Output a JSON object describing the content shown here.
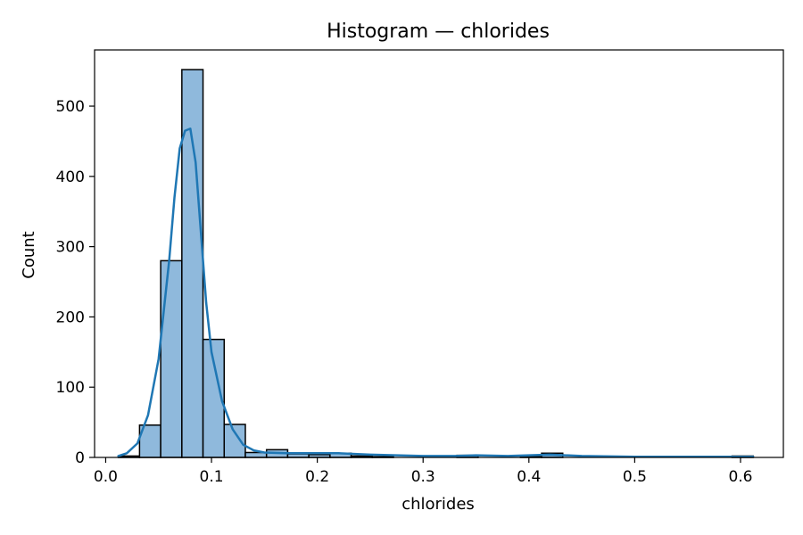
{
  "chart_data": {
    "type": "bar",
    "title": "Histogram — chlorides",
    "xlabel": "chlorides",
    "ylabel": "Count",
    "xlim": [
      -0.0105,
      0.6405
    ],
    "ylim": [
      0,
      580
    ],
    "x_ticks": [
      0.0,
      0.1,
      0.2,
      0.3,
      0.4,
      0.5,
      0.6
    ],
    "x_tick_labels": [
      "0.0",
      "0.1",
      "0.2",
      "0.3",
      "0.4",
      "0.5",
      "0.6"
    ],
    "y_ticks": [
      0,
      100,
      200,
      300,
      400,
      500
    ],
    "y_tick_labels": [
      "0",
      "100",
      "200",
      "300",
      "400",
      "500"
    ],
    "grid": false,
    "bar_color": "#8fb9dc",
    "bar_edge_color": "#000000",
    "kde_color": "#1f77b4",
    "bins": [
      {
        "x0": 0.012,
        "x1": 0.032,
        "count": 2
      },
      {
        "x0": 0.032,
        "x1": 0.052,
        "count": 46
      },
      {
        "x0": 0.052,
        "x1": 0.072,
        "count": 280
      },
      {
        "x0": 0.072,
        "x1": 0.092,
        "count": 552
      },
      {
        "x0": 0.092,
        "x1": 0.112,
        "count": 168
      },
      {
        "x0": 0.112,
        "x1": 0.132,
        "count": 47
      },
      {
        "x0": 0.132,
        "x1": 0.152,
        "count": 7
      },
      {
        "x0": 0.152,
        "x1": 0.172,
        "count": 11
      },
      {
        "x0": 0.172,
        "x1": 0.192,
        "count": 5
      },
      {
        "x0": 0.192,
        "x1": 0.212,
        "count": 4
      },
      {
        "x0": 0.212,
        "x1": 0.232,
        "count": 6
      },
      {
        "x0": 0.232,
        "x1": 0.252,
        "count": 2
      },
      {
        "x0": 0.252,
        "x1": 0.272,
        "count": 1
      },
      {
        "x0": 0.272,
        "x1": 0.292,
        "count": 0
      },
      {
        "x0": 0.292,
        "x1": 0.312,
        "count": 0
      },
      {
        "x0": 0.312,
        "x1": 0.332,
        "count": 0
      },
      {
        "x0": 0.332,
        "x1": 0.352,
        "count": 3
      },
      {
        "x0": 0.352,
        "x1": 0.372,
        "count": 0
      },
      {
        "x0": 0.372,
        "x1": 0.392,
        "count": 0
      },
      {
        "x0": 0.392,
        "x1": 0.412,
        "count": 2
      },
      {
        "x0": 0.412,
        "x1": 0.432,
        "count": 6
      },
      {
        "x0": 0.432,
        "x1": 0.452,
        "count": 0
      },
      {
        "x0": 0.452,
        "x1": 0.472,
        "count": 0
      },
      {
        "x0": 0.472,
        "x1": 0.492,
        "count": 0
      },
      {
        "x0": 0.492,
        "x1": 0.512,
        "count": 0
      },
      {
        "x0": 0.512,
        "x1": 0.532,
        "count": 0
      },
      {
        "x0": 0.532,
        "x1": 0.552,
        "count": 0
      },
      {
        "x0": 0.552,
        "x1": 0.572,
        "count": 0
      },
      {
        "x0": 0.572,
        "x1": 0.592,
        "count": 0
      },
      {
        "x0": 0.592,
        "x1": 0.612,
        "count": 2
      }
    ],
    "kde_curve": {
      "x": [
        0.012,
        0.02,
        0.03,
        0.04,
        0.05,
        0.06,
        0.065,
        0.07,
        0.075,
        0.08,
        0.085,
        0.09,
        0.095,
        0.1,
        0.11,
        0.12,
        0.13,
        0.14,
        0.15,
        0.17,
        0.2,
        0.22,
        0.25,
        0.3,
        0.33,
        0.35,
        0.38,
        0.4,
        0.42,
        0.45,
        0.5,
        0.55,
        0.6,
        0.612
      ],
      "y": [
        2,
        6,
        20,
        60,
        140,
        280,
        370,
        440,
        465,
        468,
        420,
        320,
        220,
        150,
        80,
        40,
        18,
        10,
        7,
        6,
        6,
        6,
        4,
        2,
        2,
        3,
        2,
        3,
        4,
        2,
        1,
        1,
        1,
        1
      ]
    }
  }
}
